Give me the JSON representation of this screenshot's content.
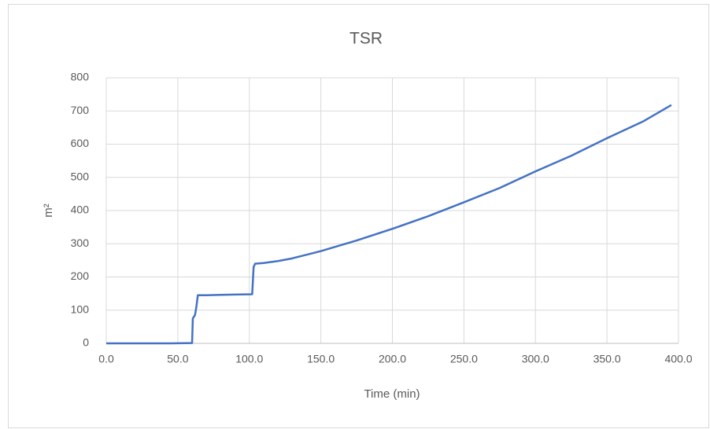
{
  "chart_data": {
    "type": "line",
    "title": "TSR",
    "xlabel": "Time (min)",
    "ylabel": "m²",
    "x": [
      0,
      45,
      59,
      60,
      60.5,
      62,
      63,
      64,
      70,
      80,
      90,
      102,
      103,
      104,
      110,
      120,
      130,
      150,
      175,
      200,
      225,
      250,
      275,
      300,
      325,
      350,
      375,
      395
    ],
    "values": [
      0,
      0,
      1,
      1,
      75,
      85,
      110,
      145,
      145,
      146,
      147,
      148,
      230,
      240,
      242,
      248,
      256,
      278,
      310,
      345,
      383,
      425,
      468,
      518,
      565,
      618,
      668,
      718
    ],
    "color": "#4472c4",
    "xlim": [
      0,
      400
    ],
    "xticks": [
      {
        "value": 0,
        "label": "0.0"
      },
      {
        "value": 50,
        "label": "50.0"
      },
      {
        "value": 100,
        "label": "100.0"
      },
      {
        "value": 150,
        "label": "150.0"
      },
      {
        "value": 200,
        "label": "200.0"
      },
      {
        "value": 250,
        "label": "250.0"
      },
      {
        "value": 300,
        "label": "300.0"
      },
      {
        "value": 350,
        "label": "350.0"
      },
      {
        "value": 400,
        "label": "400.0"
      }
    ],
    "ylim": [
      0,
      800
    ],
    "yticks": [
      0,
      100,
      200,
      300,
      400,
      500,
      600,
      700,
      800
    ],
    "grid": true
  }
}
